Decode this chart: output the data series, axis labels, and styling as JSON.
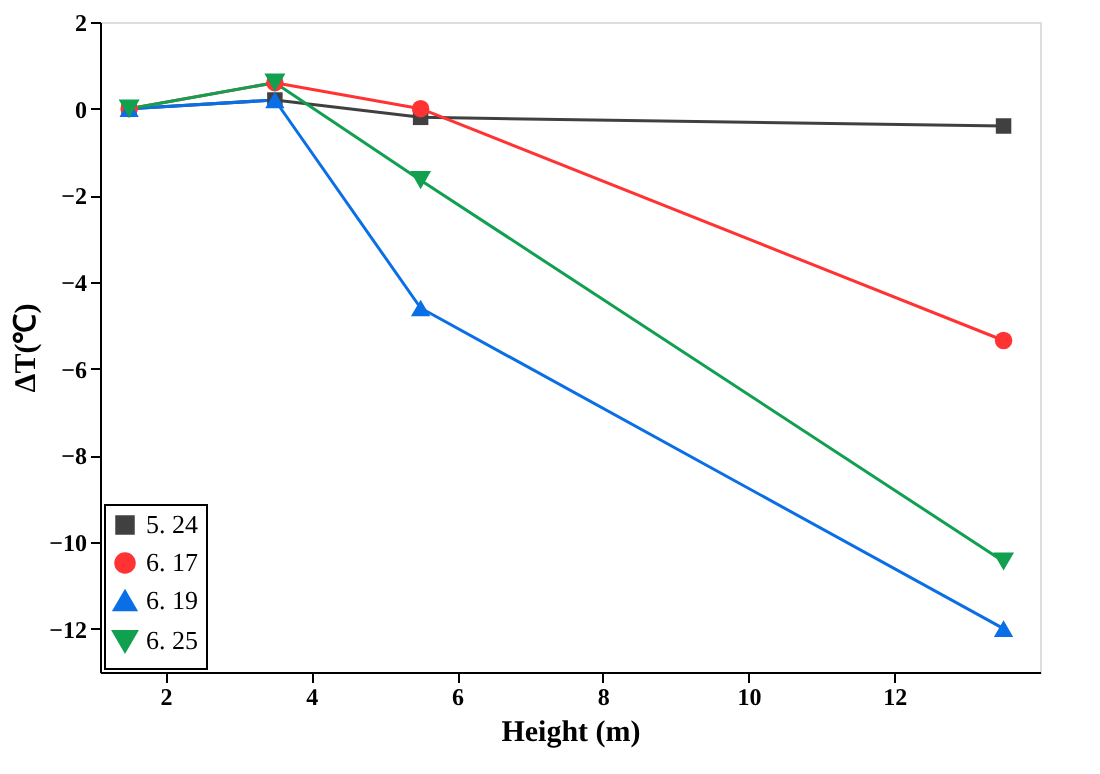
{
  "chart_data": {
    "type": "line",
    "xlabel": "Height (m)",
    "ylabel": "ΔT(℃)",
    "xlim": [
      1.1,
      14
    ],
    "xticks": [
      2,
      4,
      6,
      8,
      10,
      12
    ],
    "ylim": [
      -13,
      2
    ],
    "yticks": [
      -12,
      -10,
      -8,
      -6,
      -4,
      -2,
      0,
      2
    ],
    "x": [
      1.5,
      3.5,
      5.5,
      13.5
    ],
    "grid": false,
    "legend": "bottom left",
    "series": [
      {
        "name": "5. 24",
        "color": "#404040",
        "marker": "square",
        "values": [
          0,
          0.2,
          -0.2,
          -0.4
        ]
      },
      {
        "name": "6. 17",
        "color": "#ff3333",
        "marker": "circle",
        "values": [
          0,
          0.6,
          0,
          -5.35
        ]
      },
      {
        "name": "6. 19",
        "color": "#0a6fe6",
        "marker": "triangle",
        "values": [
          0,
          0.2,
          -4.6,
          -12
        ]
      },
      {
        "name": "6. 25",
        "color": "#10a050",
        "marker": "triangle-down",
        "values": [
          0,
          0.6,
          -1.65,
          -10.45
        ]
      }
    ]
  }
}
